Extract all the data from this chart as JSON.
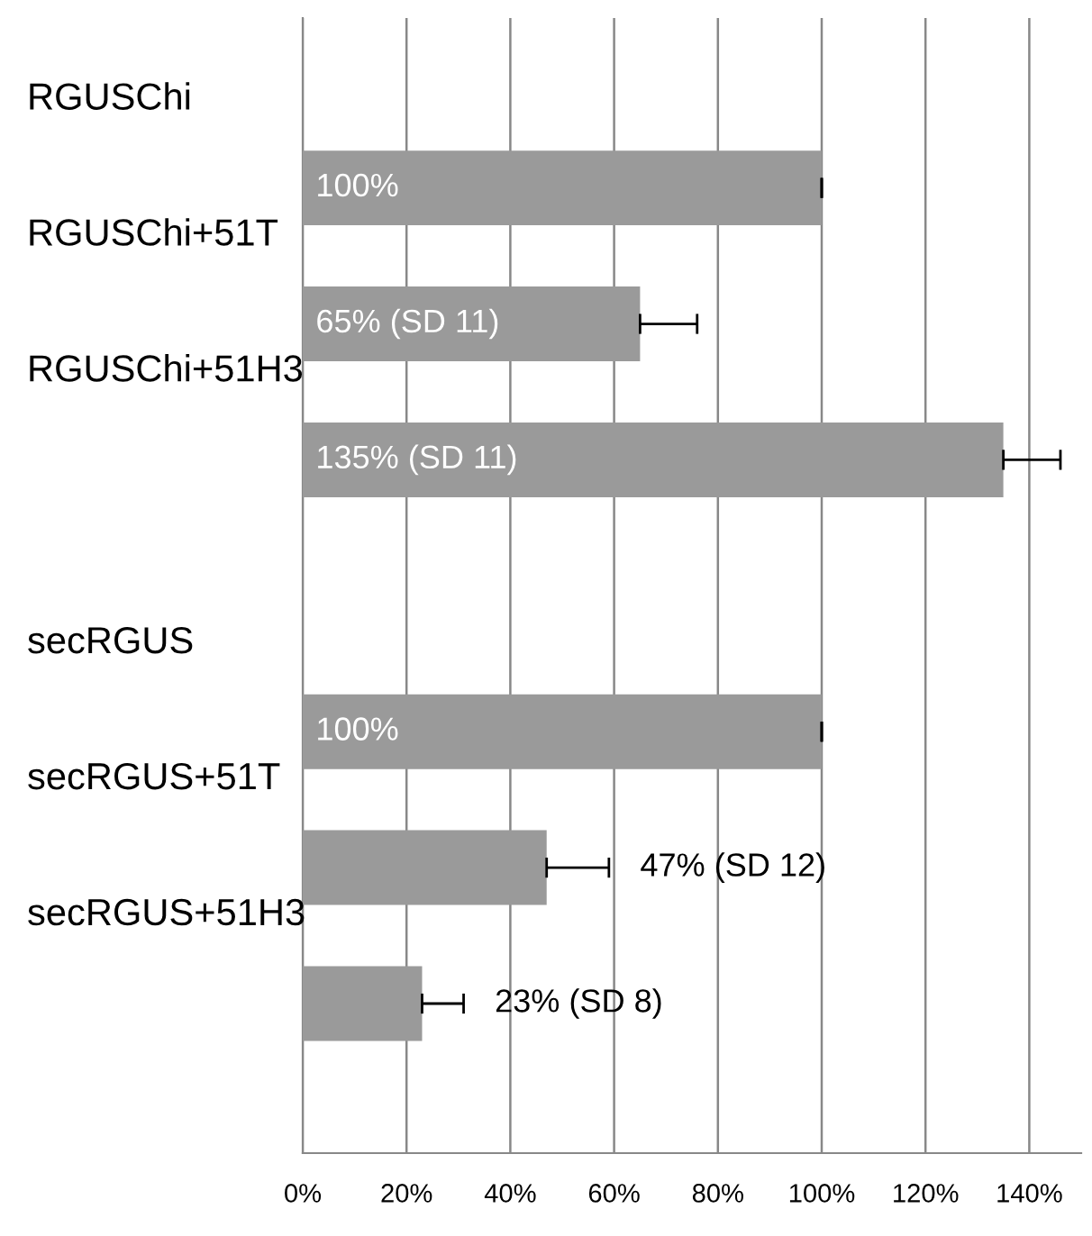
{
  "chart_data": {
    "type": "bar",
    "orientation": "horizontal",
    "categories": [
      "RGUSChi",
      "RGUSChi+51T",
      "RGUSChi+51H3",
      null,
      "secRGUS",
      "secRGUS+51T",
      "secRGUS+51H3"
    ],
    "values": [
      100,
      65,
      135,
      null,
      100,
      47,
      23
    ],
    "errors": [
      0,
      11,
      11,
      null,
      0,
      12,
      8
    ],
    "value_labels": [
      "100%",
      "65% (SD 11)",
      "135% (SD 11)",
      null,
      "100%",
      "47% (SD 12)",
      "23% (SD 8)"
    ],
    "color": "#9a9a9a",
    "xlim": [
      0,
      150
    ],
    "xticks": [
      {
        "value": 0,
        "label": "0%"
      },
      {
        "value": 20,
        "label": "20%"
      },
      {
        "value": 40,
        "label": "40%"
      },
      {
        "value": 60,
        "label": "60%"
      },
      {
        "value": 80,
        "label": "80%"
      },
      {
        "value": 100,
        "label": "100%"
      },
      {
        "value": 120,
        "label": "120%"
      },
      {
        "value": 140,
        "label": "140%"
      }
    ],
    "grid": "x"
  }
}
